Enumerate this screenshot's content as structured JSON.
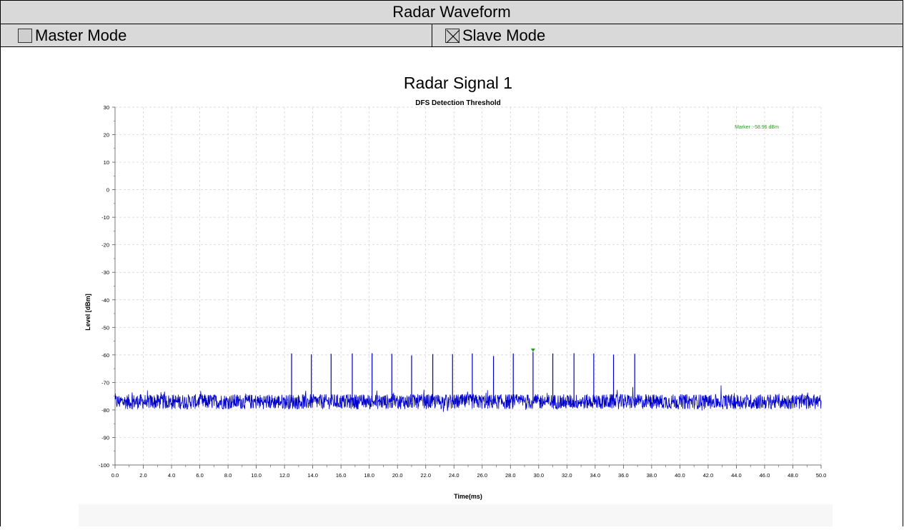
{
  "header": {
    "title": "Radar Waveform"
  },
  "modes": {
    "master": {
      "label": "Master Mode",
      "checked": false
    },
    "slave": {
      "label": "Slave Mode",
      "checked": true
    }
  },
  "chart_data": {
    "type": "line",
    "title": "Radar Signal 1",
    "subtitle": "DFS Detection Threshold",
    "xlabel": "Time(ms)",
    "ylabel": "Level [dBm]",
    "xlim": [
      0.0,
      50.0
    ],
    "ylim": [
      -100,
      30
    ],
    "x_ticks": [
      "0.0",
      "2.0",
      "4.0",
      "6.0",
      "8.0",
      "10.0",
      "12.0",
      "14.0",
      "16.0",
      "18.0",
      "20.0",
      "22.0",
      "24.0",
      "26.0",
      "28.0",
      "30.0",
      "32.0",
      "34.0",
      "36.0",
      "38.0",
      "40.0",
      "42.0",
      "44.0",
      "46.0",
      "48.0",
      "50.0"
    ],
    "y_ticks": [
      "30",
      "20",
      "10",
      "0",
      "-10",
      "-20",
      "-30",
      "-40",
      "-50",
      "-60",
      "-70",
      "-80",
      "-90",
      "-100"
    ],
    "grid": true,
    "noise_floor": -77,
    "pulses": [
      {
        "x": 12.5,
        "y": -59.5
      },
      {
        "x": 13.9,
        "y": -59.8
      },
      {
        "x": 15.3,
        "y": -59.6
      },
      {
        "x": 16.8,
        "y": -59.5
      },
      {
        "x": 18.2,
        "y": -59.4
      },
      {
        "x": 19.6,
        "y": -59.6
      },
      {
        "x": 21.0,
        "y": -60.2
      },
      {
        "x": 22.5,
        "y": -59.7
      },
      {
        "x": 23.9,
        "y": -59.7
      },
      {
        "x": 25.3,
        "y": -59.5
      },
      {
        "x": 26.8,
        "y": -60.4
      },
      {
        "x": 28.2,
        "y": -59.5
      },
      {
        "x": 29.6,
        "y": -58.96
      },
      {
        "x": 31.0,
        "y": -59.5
      },
      {
        "x": 32.5,
        "y": -59.4
      },
      {
        "x": 33.9,
        "y": -59.5
      },
      {
        "x": 35.3,
        "y": -59.9
      },
      {
        "x": 36.8,
        "y": -59.6
      }
    ],
    "marker": {
      "x": 29.6,
      "y": -58.96,
      "label": "Marker :-58.96 dBm"
    },
    "colors": {
      "series": "#0000cc",
      "marker": "#2e9a2e",
      "grid": "#cfcfcf"
    }
  }
}
